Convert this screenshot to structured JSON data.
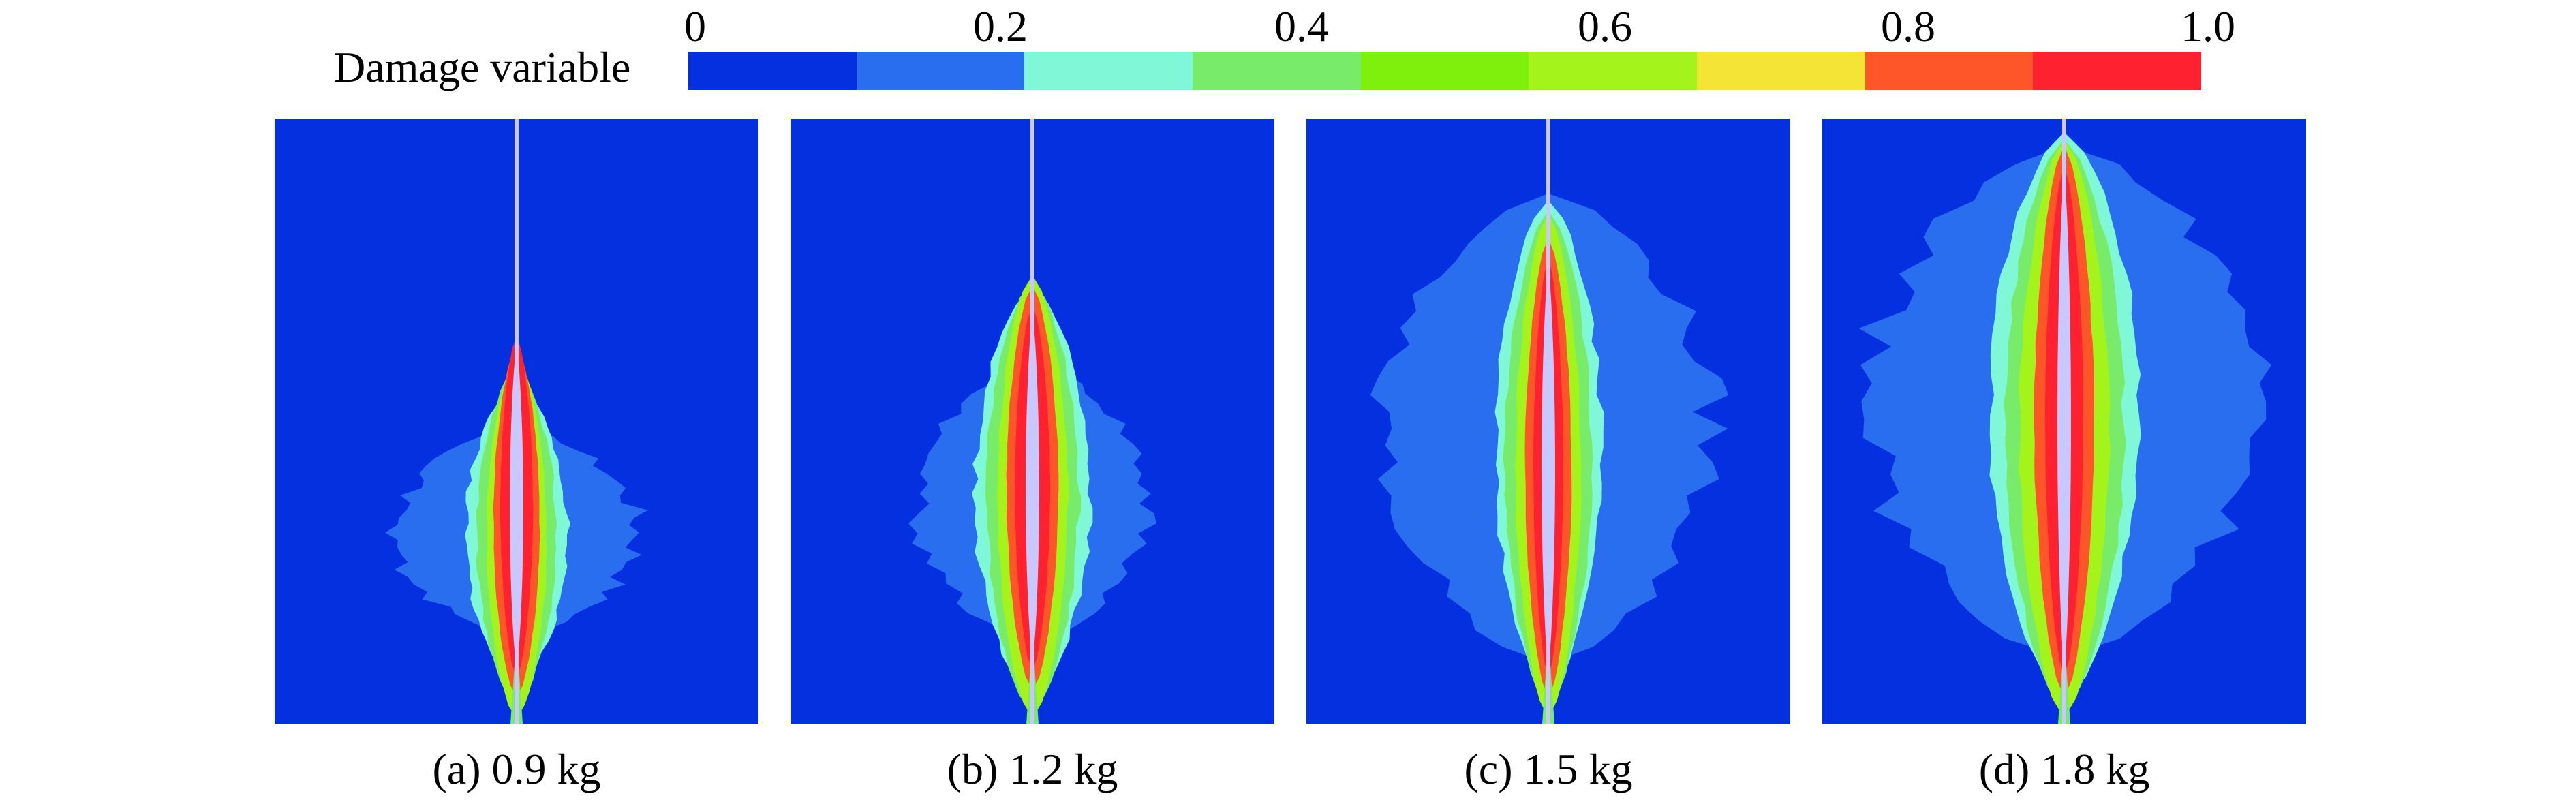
{
  "legend": {
    "title": "Damage variable",
    "ticks": [
      "0",
      "0.2",
      "0.4",
      "0.6",
      "0.8",
      "1.0"
    ],
    "colors": [
      "#0530e0",
      "#2a6ef0",
      "#80f8d8",
      "#78ec6a",
      "#7ef00c",
      "#a4f41c",
      "#f4e436",
      "#fe5628",
      "#fe2230"
    ],
    "background_color": "#0530e0",
    "crack_color": "#c8c8ff"
  },
  "panels": [
    {
      "caption": "(a) 0.9 kg",
      "charge_kg": 0.9
    },
    {
      "caption": "(b) 1.2 kg",
      "charge_kg": 1.2
    },
    {
      "caption": "(c) 1.5 kg",
      "charge_kg": 1.5
    },
    {
      "caption": "(d) 1.8 kg",
      "charge_kg": 1.8
    }
  ]
}
